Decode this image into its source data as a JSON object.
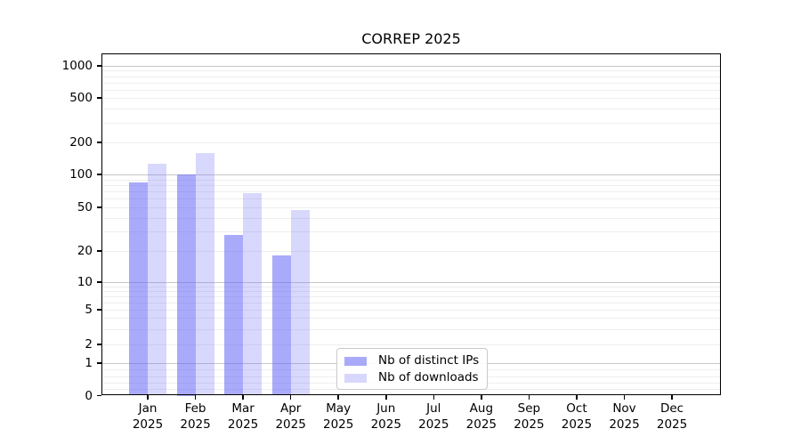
{
  "chart_data": {
    "type": "bar",
    "title": "CORREP 2025",
    "categories": [
      {
        "label": "Jan",
        "sublabel": "2025"
      },
      {
        "label": "Feb",
        "sublabel": "2025"
      },
      {
        "label": "Mar",
        "sublabel": "2025"
      },
      {
        "label": "Apr",
        "sublabel": "2025"
      },
      {
        "label": "May",
        "sublabel": "2025"
      },
      {
        "label": "Jun",
        "sublabel": "2025"
      },
      {
        "label": "Jul",
        "sublabel": "2025"
      },
      {
        "label": "Aug",
        "sublabel": "2025"
      },
      {
        "label": "Sep",
        "sublabel": "2025"
      },
      {
        "label": "Oct",
        "sublabel": "2025"
      },
      {
        "label": "Nov",
        "sublabel": "2025"
      },
      {
        "label": "Dec",
        "sublabel": "2025"
      }
    ],
    "series": [
      {
        "name": "Nb of distinct IPs",
        "color": "rgba(100,100,245,0.55)",
        "color_hex": "#a8a8f8",
        "values": [
          85,
          100,
          28,
          18,
          0,
          0,
          0,
          0,
          0,
          0,
          0,
          0
        ]
      },
      {
        "name": "Nb of downloads",
        "color": "rgba(100,100,245,0.25)",
        "color_hex": "#d8d8fa",
        "values": [
          125,
          160,
          67,
          47,
          0,
          0,
          0,
          0,
          0,
          0,
          0,
          0
        ]
      }
    ],
    "y_axis": {
      "scale": "symlog",
      "ticks": [
        0,
        1,
        2,
        5,
        10,
        20,
        50,
        100,
        200,
        500,
        1000
      ],
      "range": [
        0,
        1300
      ]
    },
    "x_axis": {
      "label": "",
      "months_shown": 12
    },
    "grid": {
      "major_values": [
        1,
        10,
        100,
        1000
      ],
      "minor_values": [
        0.2,
        0.4,
        0.6,
        0.8,
        2,
        3,
        4,
        5,
        6,
        7,
        8,
        9,
        20,
        30,
        40,
        50,
        60,
        70,
        80,
        90,
        200,
        300,
        400,
        500,
        600,
        700,
        800,
        900
      ],
      "major_color": "#c8c8c8",
      "minor_color": "#eeeeee"
    },
    "legend": {
      "position": "lower-center",
      "frame": true
    }
  },
  "colors": {
    "background": "#ffffff",
    "axis": "#000000",
    "bar_distinct_ips": "#a8a8f8",
    "bar_downloads": "#d8d8fa"
  }
}
